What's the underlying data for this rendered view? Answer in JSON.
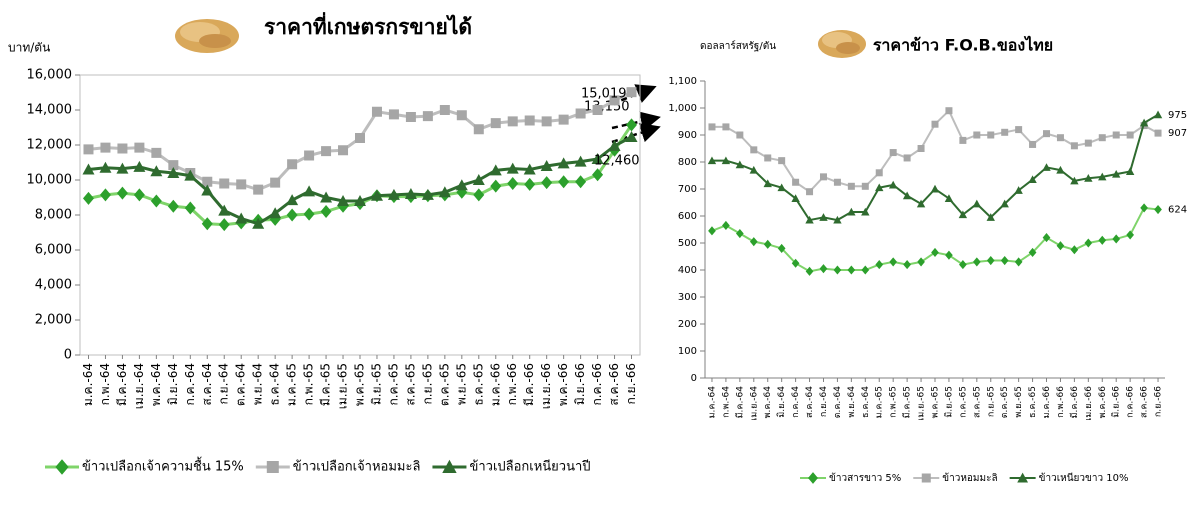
{
  "chart_data": [
    {
      "type": "line",
      "title": "ราคาที่เกษตรกรขายได้",
      "y_label": "บาท/ตัน",
      "categories": [
        "ม.ค.-64",
        "ก.พ.-64",
        "มี.ค.-64",
        "เม.ย.-64",
        "พ.ค.-64",
        "มิ.ย.-64",
        "ก.ค.-64",
        "ส.ค.-64",
        "ก.ย.-64",
        "ต.ค.-64",
        "พ.ย.-64",
        "ธ.ค.-64",
        "ม.ค.-65",
        "ก.พ.-65",
        "มี.ค.-65",
        "เม.ย.-65",
        "พ.ค.-65",
        "มิ.ย.-65",
        "ก.ค.-65",
        "ส.ค.-65",
        "ก.ย.-65",
        "ต.ค.-65",
        "พ.ย.-65",
        "ธ.ค.-65",
        "ม.ค.-66",
        "ก.พ.-66",
        "มี.ค.-66",
        "เม.ย.-66",
        "พ.ค.-66",
        "มิ.ย.-66",
        "ก.ค.-66",
        "ส.ค.-66",
        "ก.ย.-66"
      ],
      "series": [
        {
          "name": "ข้าวเปลือกเจ้าความชื้น 15%",
          "color": "#2ca02c",
          "line_color": "#7fd46a",
          "marker": "diamond",
          "values": [
            8950,
            9150,
            9250,
            9150,
            8800,
            8500,
            8400,
            7500,
            7450,
            7550,
            7700,
            7750,
            8000,
            8050,
            8200,
            8500,
            8650,
            9100,
            9050,
            9050,
            9100,
            9150,
            9300,
            9150,
            9650,
            9800,
            9750,
            9850,
            9900,
            9900,
            10300,
            11700,
            13150
          ],
          "value_labels": [
            null,
            null,
            null,
            null,
            null,
            null,
            null,
            null,
            null,
            null,
            null,
            null,
            null,
            null,
            null,
            null,
            null,
            null,
            null,
            null,
            null,
            null,
            null,
            null,
            null,
            null,
            null,
            null,
            null,
            null,
            null,
            null,
            "13,150"
          ]
        },
        {
          "name": "ข้าวเปลือกเจ้าหอมมะลิ",
          "color": "#a6a6a6",
          "line_color": "#bdbdbd",
          "marker": "square",
          "values": [
            11750,
            11850,
            11800,
            11850,
            11550,
            10850,
            10400,
            9900,
            9800,
            9750,
            9450,
            9850,
            10900,
            11400,
            11650,
            11700,
            12400,
            13900,
            13750,
            13600,
            13650,
            14000,
            13700,
            12900,
            13250,
            13350,
            13400,
            13350,
            13450,
            13800,
            14000,
            14550,
            15019
          ],
          "value_labels": [
            null,
            null,
            null,
            null,
            null,
            null,
            null,
            null,
            null,
            null,
            null,
            null,
            null,
            null,
            null,
            null,
            null,
            null,
            null,
            null,
            null,
            null,
            null,
            null,
            null,
            null,
            null,
            null,
            null,
            null,
            null,
            null,
            "15,019"
          ]
        },
        {
          "name": "ข้าวเปลือกเหนียวนาปี",
          "color": "#2f6b2f",
          "line_color": "#2f6b2f",
          "marker": "triangle",
          "values": [
            10600,
            10700,
            10650,
            10750,
            10500,
            10400,
            10250,
            9400,
            8250,
            7800,
            7500,
            8100,
            8850,
            9350,
            9000,
            8800,
            8800,
            9100,
            9150,
            9200,
            9150,
            9300,
            9700,
            10000,
            10550,
            10650,
            10600,
            10800,
            10950,
            11050,
            11200,
            11950,
            12460
          ],
          "value_labels": [
            null,
            null,
            null,
            null,
            null,
            null,
            null,
            null,
            null,
            null,
            null,
            null,
            null,
            null,
            null,
            null,
            null,
            null,
            null,
            null,
            null,
            null,
            null,
            null,
            null,
            null,
            null,
            null,
            null,
            null,
            null,
            null,
            "12,460"
          ]
        }
      ],
      "ylim": [
        0,
        16000
      ],
      "yticks": [
        0,
        {
          "value": 2000,
          "label": "2,000"
        },
        {
          "value": 4000,
          "label": "4,000"
        },
        {
          "value": 6000,
          "label": "6,000"
        },
        {
          "value": 8000,
          "label": "8,000"
        },
        {
          "value": 10000,
          "label": "10,000"
        },
        {
          "value": 12000,
          "label": "12,000"
        },
        {
          "value": 14000,
          "label": "14,000"
        },
        {
          "value": 16000,
          "label": "16,000"
        }
      ],
      "grid": false,
      "legend": "bottom"
    },
    {
      "type": "line",
      "title": "ราคาข้าว F.O.B.ของไทย",
      "y_label": "ดอลลาร์สหรัฐ/ตัน",
      "categories": [
        "ม.ค.-64",
        "ก.พ.-64",
        "มี.ค.-64",
        "เม.ย.-64",
        "พ.ค.-64",
        "มิ.ย.-64",
        "ก.ค.-64",
        "ส.ค.-64",
        "ก.ย.-64",
        "ต.ค.-64",
        "พ.ย.-64",
        "ธ.ค.-64",
        "ม.ค.-65",
        "ก.พ.-65",
        "มี.ค.-65",
        "เม.ย.-65",
        "พ.ค.-65",
        "มิ.ย.-65",
        "ก.ค.-65",
        "ส.ค.-65",
        "ก.ย.-65",
        "ต.ค.-65",
        "พ.ย.-65",
        "ธ.ค.-65",
        "ม.ค.-66",
        "ก.พ.-66",
        "มี.ค.-66",
        "เม.ย.-66",
        "พ.ค.-66",
        "มิ.ย.-66",
        "ก.ค.-66",
        "ส.ค.-66",
        "ก.ย.-66"
      ],
      "series": [
        {
          "name": "ข้าวสารขาว 5%",
          "color": "#2ca02c",
          "line_color": "#7fd46a",
          "marker": "diamond",
          "values": [
            545,
            565,
            535,
            505,
            495,
            480,
            425,
            395,
            405,
            400,
            400,
            400,
            420,
            430,
            420,
            430,
            465,
            455,
            420,
            430,
            435,
            435,
            430,
            465,
            520,
            490,
            475,
            500,
            510,
            515,
            530,
            630,
            624
          ]
        },
        {
          "name": "ข้าวหอมมะลิ",
          "color": "#a6a6a6",
          "line_color": "#bdbdbd",
          "marker": "square",
          "values": [
            930,
            930,
            900,
            845,
            815,
            805,
            725,
            690,
            745,
            725,
            710,
            710,
            760,
            835,
            815,
            850,
            940,
            990,
            880,
            900,
            900,
            910,
            920,
            865,
            905,
            890,
            860,
            870,
            890,
            900,
            900,
            935,
            907
          ]
        },
        {
          "name": "ข้าวเหนียวขาว 10%",
          "color": "#2f6b2f",
          "line_color": "#2f6b2f",
          "marker": "triangle",
          "values": [
            805,
            805,
            790,
            770,
            720,
            705,
            665,
            585,
            595,
            585,
            615,
            615,
            705,
            715,
            675,
            645,
            700,
            665,
            605,
            645,
            595,
            645,
            695,
            735,
            780,
            770,
            730,
            740,
            745,
            755,
            765,
            945,
            975
          ]
        }
      ],
      "ylim": [
        0,
        1100
      ],
      "yticks": [
        0,
        100,
        200,
        300,
        400,
        500,
        600,
        700,
        800,
        900,
        {
          "value": 1000,
          "label": "1,000"
        },
        {
          "value": 1100,
          "label": "1,100"
        }
      ],
      "grid": false,
      "legend": "bottom"
    }
  ]
}
